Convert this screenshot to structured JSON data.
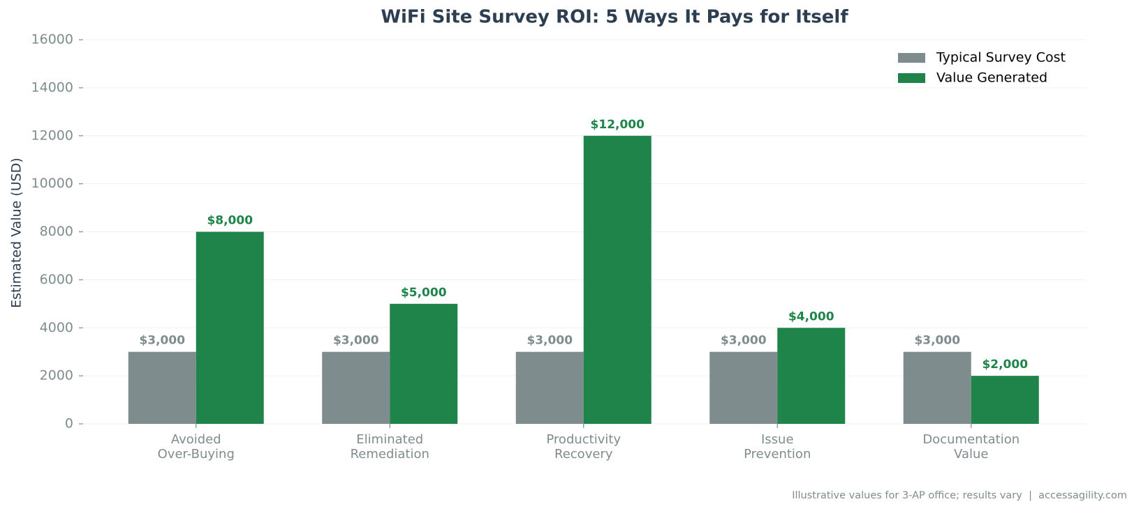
{
  "chart_data": {
    "type": "bar",
    "title": "WiFi Site Survey ROI: 5 Ways It Pays for Itself",
    "y_label": "Estimated Value (USD)",
    "footnote": "Illustrative values for 3-AP office; results vary  |  accessagility.com",
    "categories": [
      "Avoided\nOver-Buying",
      "Eliminated\nRemediation",
      "Productivity\nRecovery",
      "Issue\nPrevention",
      "Documentation\nValue"
    ],
    "series": [
      {
        "name": "Typical Survey Cost",
        "color": "#7f8c8d",
        "values": [
          3000,
          3000,
          3000,
          3000,
          3000
        ],
        "value_labels": [
          "$3,000",
          "$3,000",
          "$3,000",
          "$3,000",
          "$3,000"
        ]
      },
      {
        "name": "Value Generated",
        "color": "#1e8449",
        "values": [
          8000,
          5000,
          12000,
          4000,
          2000
        ],
        "value_labels": [
          "$8,000",
          "$5,000",
          "$12,000",
          "$4,000",
          "$2,000"
        ]
      }
    ],
    "ylim": [
      0,
      16000
    ],
    "yticks": [
      0,
      2000,
      4000,
      6000,
      8000,
      10000,
      12000,
      14000,
      16000
    ],
    "grid": true,
    "legend": "upper right"
  }
}
